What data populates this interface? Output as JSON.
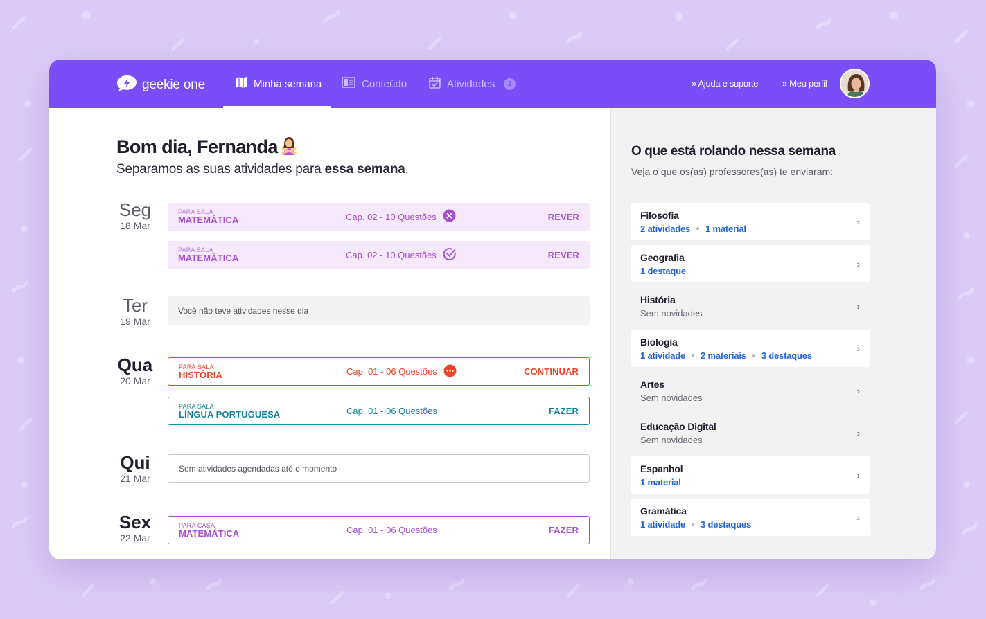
{
  "header": {
    "logo_text": "geekie one",
    "nav": [
      {
        "label": "Minha semana",
        "active": true
      },
      {
        "label": "Conteúdo",
        "active": false
      },
      {
        "label": "Atividades",
        "active": false,
        "badge": "2"
      }
    ],
    "help_link": "» Ajuda e suporte",
    "profile_link": "» Meu perfil"
  },
  "main": {
    "greeting": "Bom dia, Fernanda",
    "subtitle_prefix": "Separamos as suas atividades para ",
    "subtitle_bold": "essa semana",
    "subtitle_suffix": ".",
    "days": [
      {
        "name": "Seg",
        "date": "18 Mar"
      },
      {
        "name": "Ter",
        "date": "19 Mar"
      },
      {
        "name": "Qua",
        "date": "20 Mar"
      },
      {
        "name": "Qui",
        "date": "21 Mar"
      },
      {
        "name": "Sex",
        "date": "22 Mar"
      }
    ],
    "activities": [
      {
        "tag": "PARA SALA",
        "subject": "MATEMÁTICA",
        "chapter": "Cap. 02 - 10 Questões",
        "action": "REVER",
        "status": "incorrect"
      },
      {
        "tag": "PARA SALA",
        "subject": "MATEMÁTICA",
        "chapter": "Cap. 02 - 10 Questões",
        "action": "REVER",
        "status": "done"
      },
      {
        "tag": "PARA SALA",
        "subject": "HISTÓRIA",
        "chapter": "Cap. 01 - 06 Questões",
        "action": "CONTINUAR",
        "status": "in-progress"
      },
      {
        "tag": "PARA SALA",
        "subject": "LÍNGUA PORTUGUESA",
        "chapter": "Cap. 01 - 06 Questões",
        "action": "FAZER",
        "status": "todo"
      },
      {
        "tag": "PARA CASA",
        "subject": "MATEMÁTICA",
        "chapter": "Cap. 01 - 06 Questões",
        "action": "FAZER",
        "status": "todo"
      }
    ],
    "empty_tue": "Você não teve atividades nesse dia",
    "empty_thu": "Sem atividades agendadas até o momento"
  },
  "side": {
    "title": "O que está rolando nessa semana",
    "subtitle": "Veja o que os(as) professores(as) te enviaram:",
    "subjects": [
      {
        "name": "Filosofia",
        "items": [
          "2 atividades",
          "1 material"
        ]
      },
      {
        "name": "Geografia",
        "items": [
          "1 destaque"
        ]
      },
      {
        "name": "História",
        "none": "Sem novidades"
      },
      {
        "name": "Biologia",
        "items": [
          "1 atividade",
          "2 materiais",
          "3 destaques"
        ]
      },
      {
        "name": "Artes",
        "none": "Sem novidades"
      },
      {
        "name": "Educação Digital",
        "none": "Sem novidades"
      },
      {
        "name": "Espanhol",
        "items": [
          "1 material"
        ]
      },
      {
        "name": "Gramática",
        "items": [
          "1 atividade",
          "3 destaques"
        ]
      }
    ]
  },
  "colors": {
    "brand": "#7a4ef7",
    "background": "#dccbf8",
    "pink_card": "#f5e9fb",
    "purple_accent": "#a64fcf",
    "red_accent": "#e9472b",
    "teal_accent": "#16819b",
    "link_blue": "#2466d6"
  },
  "icons": {
    "logo": "lightning-bubble-icon",
    "nav_minha_semana": "map-icon",
    "nav_conteudo": "book-icon",
    "nav_atividades": "calendar-check-icon",
    "status_incorrect": "x-circle-icon",
    "status_done": "check-circle-icon",
    "status_in_progress": "dots-circle-icon",
    "chevron": "chevron-right-icon",
    "emoji": "person-gesturing-no-emoji"
  }
}
